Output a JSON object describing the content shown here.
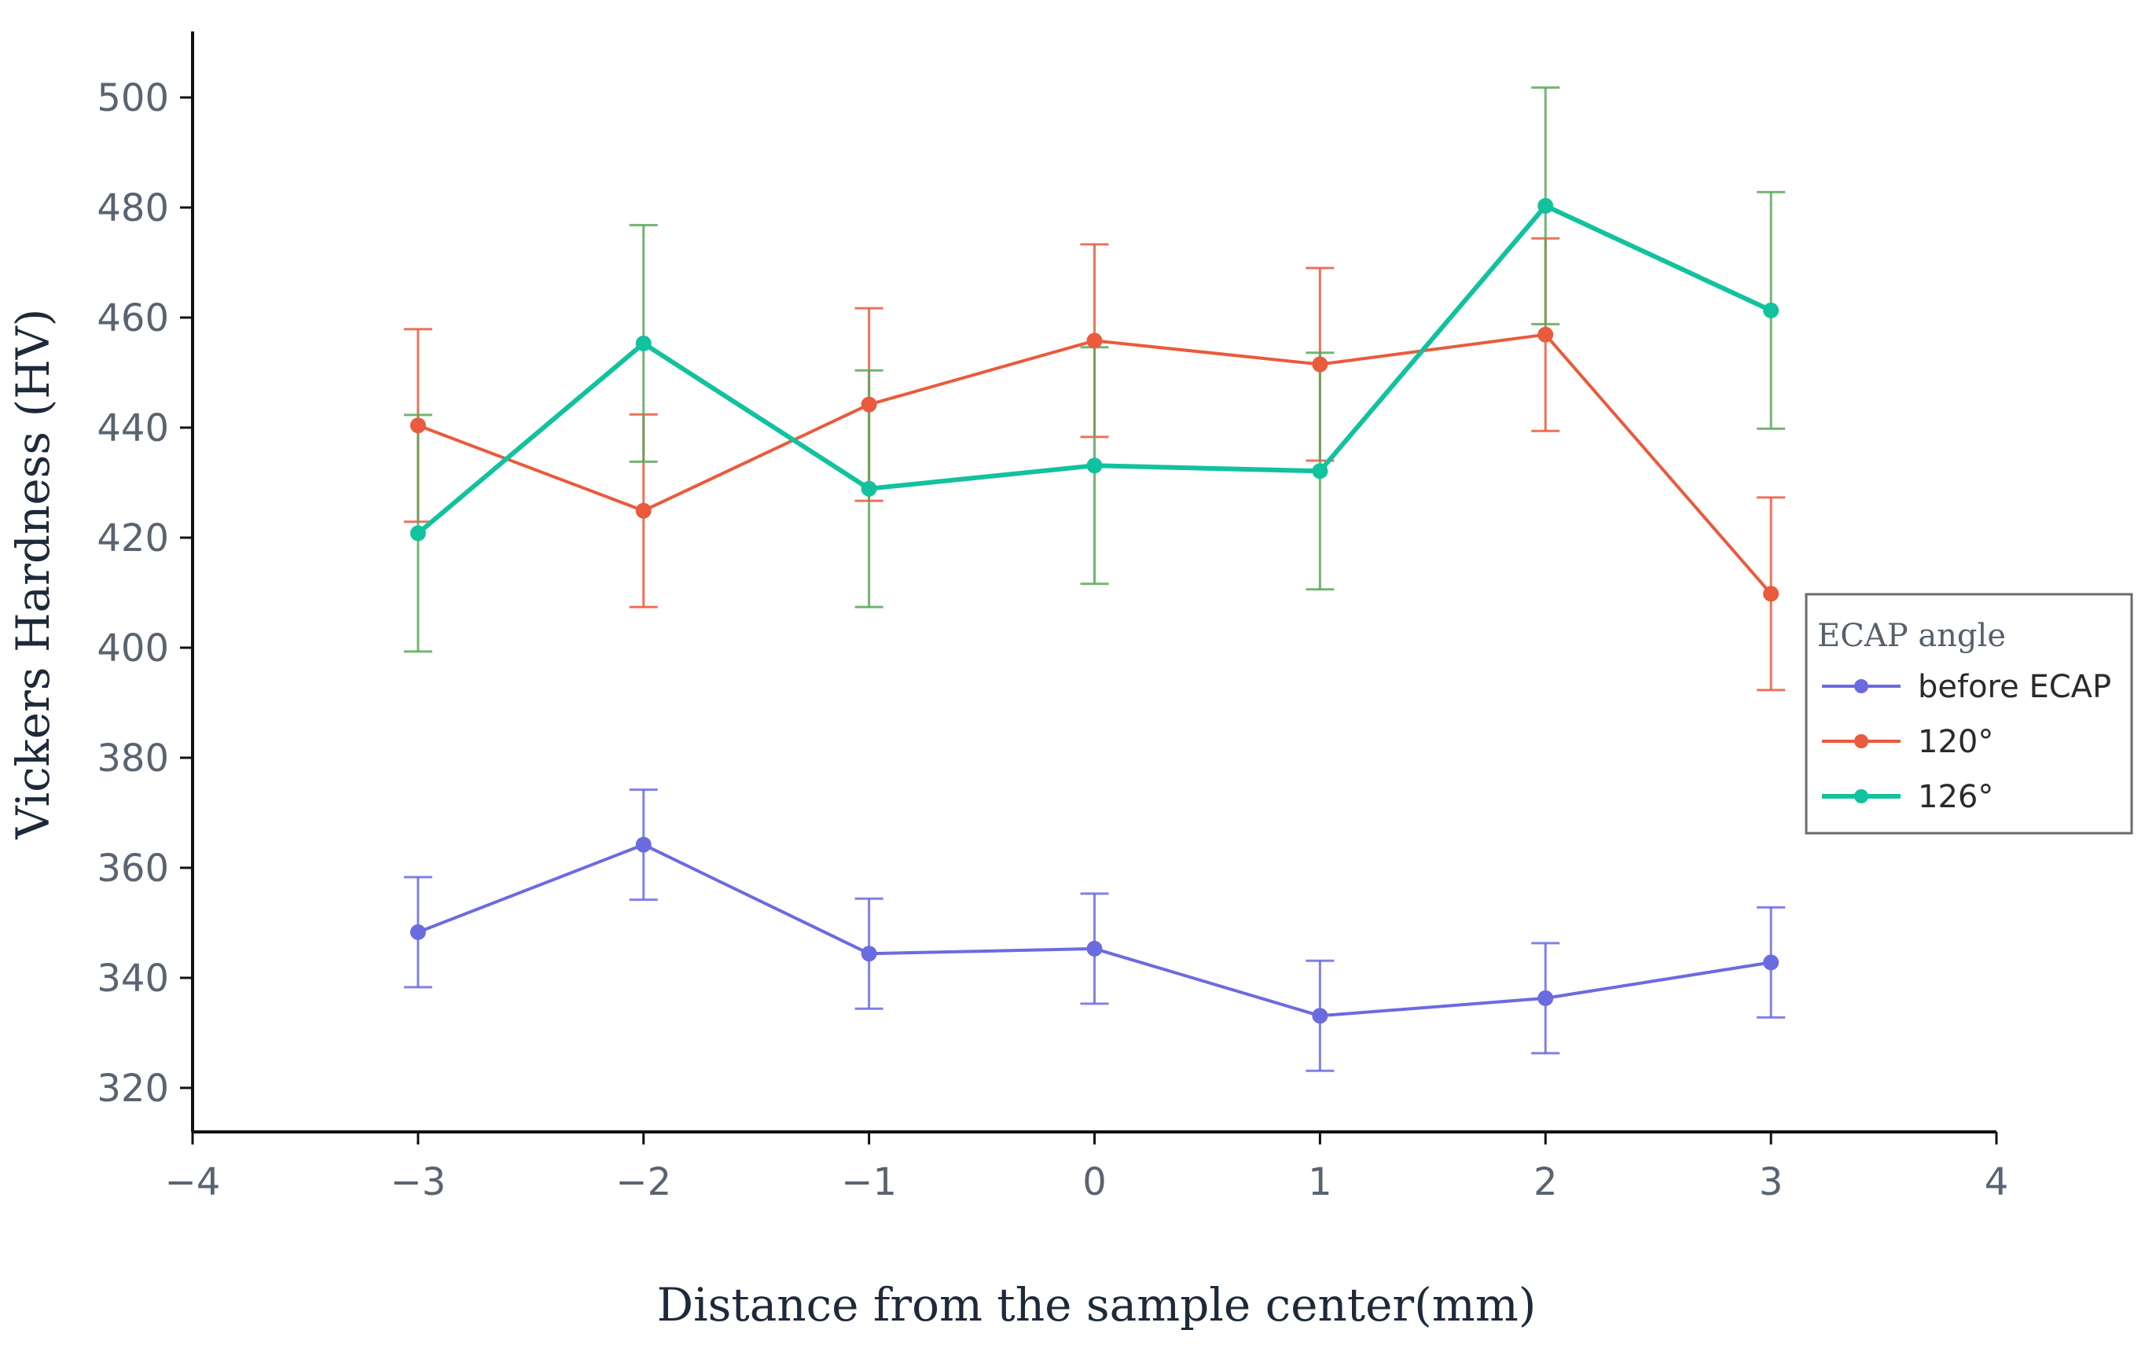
{
  "chart_data": {
    "type": "line",
    "title": "",
    "xlabel": "Distance from the sample center(mm)",
    "ylabel": "Vickers Hardness (HV)",
    "xlim": [
      -4,
      4
    ],
    "ylim": [
      312,
      512
    ],
    "x_ticks": [
      -4,
      -3,
      -2,
      -1,
      0,
      1,
      2,
      3,
      4
    ],
    "x_tick_labels": [
      "−4",
      "−3",
      "−2",
      "−1",
      "0",
      "1",
      "2",
      "3",
      "4"
    ],
    "y_ticks": [
      320,
      340,
      360,
      380,
      400,
      420,
      440,
      460,
      480,
      500
    ],
    "y_tick_labels": [
      "320",
      "340",
      "360",
      "380",
      "400",
      "420",
      "440",
      "460",
      "480",
      "500"
    ],
    "grid": false,
    "legend": {
      "title": "ECAP angle",
      "placement": "right"
    },
    "x": [
      -3,
      -2,
      -1,
      0,
      1,
      2,
      3
    ],
    "series": [
      {
        "name": "before ECAP",
        "color": "#6b6be0",
        "values": [
          348.3,
          364.2,
          344.4,
          345.3,
          333.1,
          336.3,
          342.8
        ],
        "errors": [
          10,
          10,
          10,
          10,
          10,
          10,
          10
        ]
      },
      {
        "name": "120°",
        "color": "#ea5a3c",
        "values": [
          440.4,
          424.9,
          444.2,
          455.8,
          451.5,
          456.9,
          409.8
        ],
        "errors": [
          17.5,
          17.5,
          17.5,
          17.5,
          17.5,
          17.5,
          17.5
        ]
      },
      {
        "name": "126°",
        "color": "#12c29e",
        "values": [
          420.8,
          455.3,
          428.9,
          433.1,
          432.1,
          480.3,
          461.3
        ],
        "errors": [
          21.5,
          21.5,
          21.5,
          21.5,
          21.5,
          21.5,
          21.5
        ],
        "error_color": "#5aa85a"
      }
    ]
  }
}
